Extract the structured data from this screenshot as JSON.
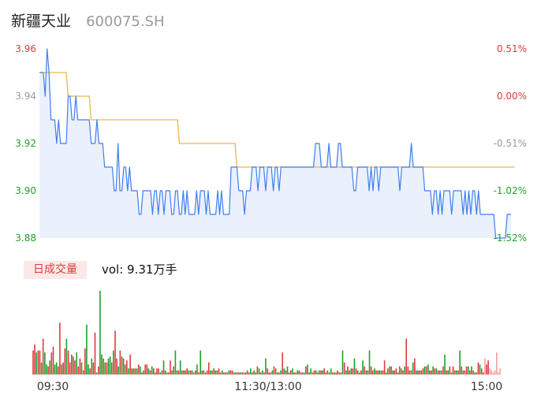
{
  "header": {
    "name": "新疆天业",
    "code": "600075.SH"
  },
  "volume_panel": {
    "tag": "日成交量",
    "readout": "vol: 9.31万手"
  },
  "colors": {
    "price_line": "#3d7ef0",
    "avg_line": "#f0b44a",
    "area_fill": "#eaf1fd",
    "up": "#e2393c",
    "down": "#1fa12a",
    "flat": "#9a9a9a"
  },
  "chart_data": [
    {
      "type": "line",
      "title": "",
      "x_ticks": [
        "09:30",
        "11:30/13:00",
        "15:00"
      ],
      "sessions": 240,
      "y_ticks": [
        "3.96",
        "3.94",
        "3.92",
        "3.90",
        "3.88"
      ],
      "ylim": [
        3.88,
        3.96
      ],
      "pct_ticks": [
        "0.51%",
        "0.00%",
        "-0.51%",
        "-1.02%",
        "-1.52%"
      ],
      "prev_close": 3.94,
      "price": [
        3.95,
        3.95,
        3.95,
        3.94,
        3.96,
        3.95,
        3.93,
        3.93,
        3.93,
        3.92,
        3.93,
        3.92,
        3.92,
        3.92,
        3.92,
        3.94,
        3.94,
        3.93,
        3.93,
        3.94,
        3.93,
        3.93,
        3.93,
        3.93,
        3.93,
        3.93,
        3.93,
        3.92,
        3.92,
        3.92,
        3.93,
        3.92,
        3.92,
        3.92,
        3.91,
        3.91,
        3.91,
        3.91,
        3.91,
        3.9,
        3.9,
        3.92,
        3.9,
        3.9,
        3.91,
        3.91,
        3.9,
        3.91,
        3.9,
        3.9,
        3.9,
        3.9,
        3.89,
        3.89,
        3.9,
        3.9,
        3.9,
        3.9,
        3.9,
        3.89,
        3.9,
        3.9,
        3.89,
        3.9,
        3.9,
        3.89,
        3.9,
        3.9,
        3.9,
        3.89,
        3.89,
        3.9,
        3.9,
        3.89,
        3.89,
        3.9,
        3.89,
        3.9,
        3.89,
        3.89,
        3.89,
        3.89,
        3.9,
        3.89,
        3.9,
        3.9,
        3.9,
        3.89,
        3.9,
        3.89,
        3.89,
        3.89,
        3.89,
        3.9,
        3.89,
        3.9,
        3.89,
        3.89,
        3.89,
        3.89,
        3.91,
        3.91,
        3.91,
        3.91,
        3.9,
        3.9,
        3.9,
        3.89,
        3.9,
        3.9,
        3.9,
        3.91,
        3.91,
        3.91,
        3.9,
        3.91,
        3.91,
        3.91,
        3.9,
        3.91,
        3.91,
        3.91,
        3.9,
        3.91,
        3.91,
        3.9,
        3.91,
        3.91,
        3.91,
        3.91,
        3.91,
        3.91,
        3.91,
        3.91,
        3.91,
        3.91,
        3.91,
        3.91,
        3.91,
        3.91,
        3.91,
        3.91,
        3.91,
        3.91,
        3.92,
        3.92,
        3.92,
        3.91,
        3.91,
        3.91,
        3.91,
        3.92,
        3.91,
        3.91,
        3.91,
        3.91,
        3.92,
        3.92,
        3.91,
        3.91,
        3.91,
        3.91,
        3.91,
        3.91,
        3.9,
        3.9,
        3.91,
        3.91,
        3.91,
        3.91,
        3.91,
        3.91,
        3.9,
        3.91,
        3.9,
        3.91,
        3.91,
        3.9,
        3.91,
        3.91,
        3.91,
        3.91,
        3.91,
        3.91,
        3.91,
        3.91,
        3.91,
        3.91,
        3.9,
        3.91,
        3.91,
        3.91,
        3.91,
        3.91,
        3.92,
        3.91,
        3.91,
        3.91,
        3.91,
        3.91,
        3.91,
        3.9,
        3.9,
        3.9,
        3.9,
        3.89,
        3.9,
        3.9,
        3.89,
        3.9,
        3.89,
        3.9,
        3.9,
        3.9,
        3.9,
        3.89,
        3.9,
        3.9,
        3.9,
        3.9,
        3.9,
        3.89,
        3.9,
        3.89,
        3.9,
        3.89,
        3.9,
        3.9,
        3.89,
        3.9,
        3.89,
        3.89,
        3.89,
        3.89,
        3.89,
        3.89,
        3.89,
        3.89,
        3.88,
        3.88,
        3.88,
        3.88,
        3.88,
        3.88,
        3.89,
        3.89,
        3.89
      ],
      "avg_price": [
        3.95,
        3.95,
        3.95,
        3.95,
        3.95,
        3.95,
        3.95,
        3.95,
        3.95,
        3.95,
        3.95,
        3.95,
        3.95,
        3.95,
        3.95,
        3.94,
        3.94,
        3.94,
        3.94,
        3.94,
        3.94,
        3.94,
        3.94,
        3.94,
        3.94,
        3.94,
        3.94,
        3.93,
        3.93,
        3.93,
        3.93,
        3.93,
        3.93,
        3.93,
        3.93,
        3.93,
        3.93,
        3.93,
        3.93,
        3.93,
        3.93,
        3.93,
        3.93,
        3.93,
        3.93,
        3.93,
        3.93,
        3.93,
        3.93,
        3.93,
        3.93,
        3.93,
        3.93,
        3.93,
        3.93,
        3.93,
        3.93,
        3.93,
        3.93,
        3.93,
        3.93,
        3.93,
        3.93,
        3.93,
        3.93,
        3.93,
        3.93,
        3.93,
        3.93,
        3.93,
        3.93,
        3.93,
        3.93,
        3.92,
        3.92,
        3.92,
        3.92,
        3.92,
        3.92,
        3.92,
        3.92,
        3.92,
        3.92,
        3.92,
        3.92,
        3.92,
        3.92,
        3.92,
        3.92,
        3.92,
        3.92,
        3.92,
        3.92,
        3.92,
        3.92,
        3.92,
        3.92,
        3.92,
        3.92,
        3.92,
        3.92,
        3.92,
        3.92,
        3.91,
        3.91,
        3.91,
        3.91,
        3.91,
        3.91,
        3.91,
        3.91,
        3.91,
        3.91,
        3.91,
        3.91,
        3.91,
        3.91,
        3.91,
        3.91,
        3.91,
        3.91,
        3.91,
        3.91,
        3.91,
        3.91,
        3.91,
        3.91,
        3.91,
        3.91,
        3.91,
        3.91,
        3.91,
        3.91,
        3.91,
        3.91,
        3.91,
        3.91,
        3.91,
        3.91,
        3.91,
        3.91,
        3.91,
        3.91,
        3.91,
        3.91,
        3.91,
        3.91,
        3.91,
        3.91,
        3.91,
        3.91,
        3.91,
        3.91,
        3.91,
        3.91,
        3.91,
        3.91,
        3.91,
        3.91,
        3.91,
        3.91,
        3.91,
        3.91,
        3.91,
        3.91,
        3.91,
        3.91,
        3.91,
        3.91,
        3.91,
        3.91,
        3.91,
        3.91,
        3.91,
        3.91,
        3.91,
        3.91,
        3.91,
        3.91,
        3.91,
        3.91,
        3.91,
        3.91,
        3.91,
        3.91,
        3.91,
        3.91,
        3.91,
        3.91,
        3.91,
        3.91,
        3.91,
        3.91,
        3.91,
        3.91,
        3.91,
        3.91,
        3.91,
        3.91,
        3.91,
        3.91,
        3.91,
        3.91,
        3.91,
        3.91,
        3.91,
        3.91,
        3.91,
        3.91,
        3.91,
        3.91,
        3.91,
        3.91,
        3.91,
        3.91,
        3.91,
        3.91,
        3.91,
        3.91,
        3.91,
        3.91,
        3.91,
        3.91,
        3.91,
        3.91,
        3.91,
        3.91,
        3.91,
        3.91,
        3.91,
        3.91,
        3.91,
        3.91,
        3.91,
        3.91,
        3.91,
        3.91,
        3.91,
        3.91,
        3.91,
        3.91,
        3.91,
        3.91,
        3.91,
        3.91,
        3.91,
        3.91,
        3.91,
        3.91
      ]
    },
    {
      "type": "bar",
      "title": "",
      "unit": "手",
      "volume": [
        60,
        75,
        55,
        60,
        60,
        30,
        90,
        55,
        25,
        20,
        35,
        55,
        70,
        25,
        30,
        20,
        130,
        25,
        30,
        65,
        90,
        60,
        30,
        50,
        45,
        35,
        55,
        20,
        40,
        30,
        10,
        65,
        125,
        25,
        15,
        40,
        30,
        105,
        5,
        20,
        210,
        50,
        40,
        30,
        30,
        40,
        45,
        30,
        60,
        110,
        40,
        20,
        60,
        45,
        40,
        25,
        35,
        15,
        50,
        15,
        15,
        15,
        15,
        25,
        20,
        5,
        10,
        25,
        25,
        15,
        10,
        20,
        15,
        5,
        15,
        15,
        5,
        10,
        35,
        10,
        5,
        5,
        35,
        10,
        20,
        60,
        10,
        10,
        35,
        10,
        10,
        10,
        15,
        10,
        10,
        10,
        5,
        10,
        25,
        5,
        60,
        10,
        10,
        5,
        10,
        30,
        10,
        10,
        15,
        10,
        10,
        15,
        5,
        10,
        5,
        5,
        5,
        10,
        10,
        10,
        5,
        5,
        5,
        5,
        5,
        5,
        5,
        5,
        10,
        5,
        15,
        5,
        10,
        5,
        20,
        15,
        5,
        10,
        5,
        40,
        15,
        5,
        5,
        10,
        20,
        15,
        5,
        5,
        10,
        55,
        15,
        10,
        20,
        5,
        10,
        15,
        5,
        5,
        10,
        10,
        5,
        5,
        5,
        20,
        25,
        5,
        15,
        5,
        10,
        10,
        5,
        10,
        10,
        10,
        15,
        5,
        10,
        5,
        15,
        5,
        5,
        5,
        10,
        5,
        5,
        60,
        30,
        10,
        20,
        10,
        15,
        15,
        40,
        15,
        10,
        5,
        10,
        35,
        20,
        10,
        10,
        60,
        20,
        10,
        15,
        10,
        10,
        10,
        10,
        10,
        35,
        5,
        15,
        20,
        20,
        10,
        10,
        15,
        5,
        20,
        15,
        10,
        20,
        90,
        20,
        10,
        10,
        30,
        40,
        10,
        10,
        10,
        10,
        15,
        20,
        20,
        25,
        10,
        10,
        20,
        15,
        15,
        10,
        10,
        10,
        20,
        50,
        10,
        10,
        20,
        5,
        20,
        10,
        10,
        10,
        60,
        20,
        10,
        10,
        20,
        20,
        10,
        20,
        10,
        5,
        5,
        30,
        25,
        15,
        5,
        40,
        25,
        35,
        15,
        10,
        5,
        10,
        55,
        5,
        15
      ],
      "dir": [
        1,
        1,
        -1,
        1,
        1,
        -1,
        1,
        -1,
        -1,
        1,
        -1,
        1,
        1,
        -1,
        -1,
        1,
        1,
        -1,
        1,
        1,
        -1,
        1,
        1,
        -1,
        1,
        1,
        -1,
        1,
        1,
        -1,
        1,
        1,
        -1,
        -1,
        1,
        -1,
        1,
        1,
        -1,
        1,
        -1,
        -1,
        1,
        -1,
        1,
        -1,
        -1,
        1,
        -1,
        1,
        1,
        -1,
        1,
        -1,
        1,
        -1,
        1,
        -1,
        1,
        -1,
        1,
        1,
        -1,
        1,
        -1,
        1,
        -1,
        1,
        1,
        -1,
        1,
        -1,
        1,
        -1,
        1,
        1,
        -1,
        1,
        -1,
        1,
        -1,
        1,
        1,
        -1,
        1,
        -1,
        -1,
        1,
        -1,
        1,
        1,
        -1,
        1,
        -1,
        1,
        -1,
        1,
        1,
        -1,
        1,
        -1,
        1,
        -1,
        1,
        1,
        1,
        -1,
        1,
        -1,
        1,
        -1,
        1,
        1,
        -1,
        1,
        -1,
        1,
        -1,
        1,
        1,
        -1,
        1,
        -1,
        1,
        -1,
        1,
        1,
        1,
        -1,
        1,
        -1,
        1,
        -1,
        1,
        1,
        -1,
        1,
        -1,
        1,
        -1,
        1,
        1,
        1,
        -1,
        1,
        -1,
        1,
        1,
        -1,
        1,
        -1,
        1,
        -1,
        1,
        1,
        -1,
        1,
        -1,
        1,
        -1,
        1,
        1,
        -1,
        1,
        -1,
        1,
        -1,
        1,
        1,
        -1,
        1,
        -1,
        1,
        -1,
        1,
        1,
        -1,
        1,
        -1,
        1,
        -1,
        1,
        1,
        -1,
        1,
        -1,
        1,
        -1,
        1,
        1,
        -1,
        1,
        -1,
        1,
        -1,
        1,
        1,
        -1,
        1,
        -1,
        1,
        -1,
        1,
        1,
        -1,
        1,
        -1,
        1,
        -1,
        1,
        1,
        -1,
        1,
        -1,
        1,
        -1,
        1,
        1,
        -1,
        1,
        -1,
        1,
        -1,
        1,
        1,
        -1,
        1,
        -1,
        1,
        -1,
        1,
        1,
        -1,
        1,
        -1,
        1,
        -1,
        1,
        1,
        -1,
        1,
        -1,
        1,
        -1,
        1,
        1,
        -1,
        1,
        -1,
        1,
        -1,
        1,
        1,
        -1,
        1,
        -1,
        1,
        -1,
        1,
        1,
        -1,
        1,
        -1,
        1,
        -1,
        1,
        1,
        -1,
        1,
        1,
        0,
        1,
        1
      ]
    }
  ]
}
